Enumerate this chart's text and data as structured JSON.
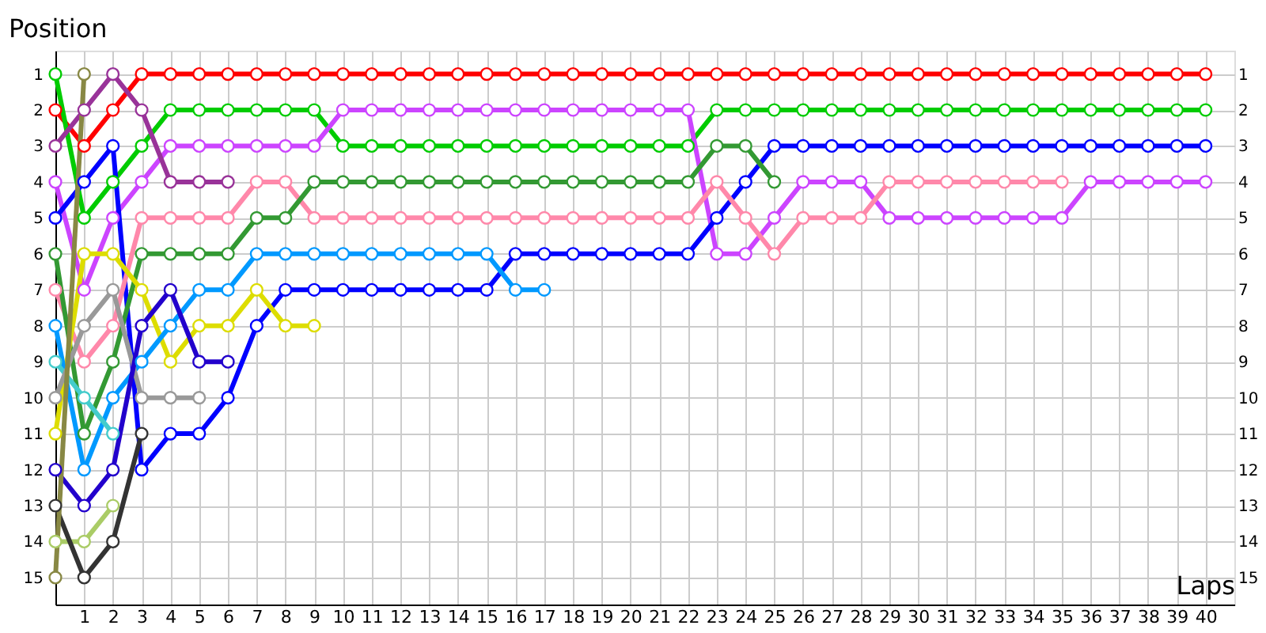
{
  "chart_data": {
    "type": "line",
    "xlabel": "Laps",
    "ylabel": "Position",
    "x": [
      0,
      1,
      2,
      3,
      4,
      5,
      6,
      7,
      8,
      9,
      10,
      11,
      12,
      13,
      14,
      15,
      16,
      17,
      18,
      19,
      20,
      21,
      22,
      23,
      24,
      25,
      26,
      27,
      28,
      29,
      30,
      31,
      32,
      33,
      34,
      35,
      36,
      37,
      38,
      39,
      40
    ],
    "xlim": [
      0,
      41
    ],
    "xticks": [
      1,
      2,
      3,
      4,
      5,
      6,
      7,
      8,
      9,
      10,
      11,
      12,
      13,
      14,
      15,
      16,
      17,
      18,
      19,
      20,
      21,
      22,
      23,
      24,
      25,
      26,
      27,
      28,
      29,
      30,
      31,
      32,
      33,
      34,
      35,
      36,
      37,
      38,
      39,
      40
    ],
    "ylim": [
      15.75,
      0.35
    ],
    "yticks": [
      1,
      2,
      3,
      4,
      5,
      6,
      7,
      8,
      9,
      10,
      11,
      12,
      13,
      14,
      15
    ],
    "y2lim": [
      15.75,
      0.35
    ],
    "y2ticks": [
      1,
      2,
      3,
      4,
      5,
      6,
      7,
      8,
      9,
      10,
      11,
      12,
      13,
      14,
      15
    ],
    "grid": true,
    "legend": false,
    "marker": "circle",
    "line_style": "solid",
    "series": [
      {
        "color": "#ff0000",
        "values": [
          2,
          3,
          2,
          1,
          1,
          1,
          1,
          1,
          1,
          1,
          1,
          1,
          1,
          1,
          1,
          1,
          1,
          1,
          1,
          1,
          1,
          1,
          1,
          1,
          1,
          1,
          1,
          1,
          1,
          1,
          1,
          1,
          1,
          1,
          1,
          1,
          1,
          1,
          1,
          1,
          1
        ]
      },
      {
        "color": "#00cc00",
        "values": [
          1,
          5,
          4,
          3,
          2,
          2,
          2,
          2,
          2,
          2,
          3,
          3,
          3,
          3,
          3,
          3,
          3,
          3,
          3,
          3,
          3,
          3,
          3,
          2,
          2,
          2,
          2,
          2,
          2,
          2,
          2,
          2,
          2,
          2,
          2,
          2,
          2,
          2,
          2,
          2,
          2
        ]
      },
      {
        "color": "#cc44ff",
        "values": [
          4,
          7,
          5,
          4,
          3,
          3,
          3,
          3,
          3,
          3,
          2,
          2,
          2,
          2,
          2,
          2,
          2,
          2,
          2,
          2,
          2,
          2,
          2,
          6,
          6,
          5,
          4,
          4,
          4,
          5,
          5,
          5,
          5,
          5,
          5,
          5,
          4,
          4,
          4,
          4,
          4
        ]
      },
      {
        "color": "#993399",
        "values": [
          3,
          2,
          1,
          2,
          4,
          4,
          4,
          null,
          null,
          null,
          null,
          null,
          null,
          null,
          null,
          null,
          null,
          null,
          null,
          null,
          null,
          null,
          null,
          null,
          null,
          null,
          null,
          null,
          null,
          null,
          null,
          null,
          null,
          null,
          null,
          null,
          null,
          null,
          null,
          null,
          null
        ]
      },
      {
        "color": "#0000ff",
        "values": [
          5,
          4,
          3,
          12,
          11,
          11,
          10,
          8,
          7,
          7,
          7,
          7,
          7,
          7,
          7,
          7,
          6,
          6,
          6,
          6,
          6,
          6,
          6,
          5,
          4,
          3,
          3,
          3,
          3,
          3,
          3,
          3,
          3,
          3,
          3,
          3,
          3,
          3,
          3,
          3,
          3
        ]
      },
      {
        "color": "#ff88aa",
        "values": [
          7,
          9,
          8,
          5,
          5,
          5,
          5,
          4,
          4,
          5,
          5,
          5,
          5,
          5,
          5,
          5,
          5,
          5,
          5,
          5,
          5,
          5,
          5,
          4,
          5,
          6,
          5,
          5,
          5,
          4,
          4,
          4,
          4,
          4,
          4,
          4,
          null,
          null,
          null,
          null,
          null
        ]
      },
      {
        "color": "#339933",
        "values": [
          6,
          11,
          9,
          6,
          6,
          6,
          6,
          5,
          5,
          4,
          4,
          4,
          4,
          4,
          4,
          4,
          4,
          4,
          4,
          4,
          4,
          4,
          4,
          3,
          3,
          4,
          null,
          null,
          null,
          null,
          null,
          null,
          null,
          null,
          null,
          null,
          null,
          null,
          null,
          null,
          null
        ]
      },
      {
        "color": "#dddd00",
        "values": [
          11,
          6,
          6,
          7,
          9,
          8,
          8,
          7,
          8,
          8,
          null,
          null,
          null,
          null,
          null,
          null,
          null,
          null,
          null,
          null,
          null,
          null,
          null,
          null,
          null,
          null,
          null,
          null,
          null,
          null,
          null,
          null,
          null,
          null,
          null,
          null,
          null,
          null,
          null,
          null,
          null
        ]
      },
      {
        "color": "#0099ff",
        "values": [
          8,
          12,
          10,
          9,
          8,
          7,
          7,
          6,
          6,
          6,
          6,
          6,
          6,
          6,
          6,
          6,
          7,
          7,
          null,
          null,
          null,
          null,
          null,
          null,
          null,
          null,
          null,
          null,
          null,
          null,
          null,
          null,
          null,
          null,
          null,
          null,
          null,
          null,
          null,
          null,
          null
        ]
      },
      {
        "color": "#44cccc",
        "values": [
          9,
          10,
          11,
          null,
          null,
          null,
          null,
          null,
          null,
          null,
          null,
          null,
          null,
          null,
          null,
          null,
          null,
          null,
          null,
          null,
          null,
          null,
          null,
          null,
          null,
          null,
          null,
          null,
          null,
          null,
          null,
          null,
          null,
          null,
          null,
          null,
          null,
          null,
          null,
          null,
          null
        ]
      },
      {
        "color": "#999999",
        "values": [
          10,
          8,
          7,
          10,
          10,
          10,
          null,
          null,
          null,
          null,
          null,
          null,
          null,
          null,
          null,
          null,
          null,
          null,
          null,
          null,
          null,
          null,
          null,
          null,
          null,
          null,
          null,
          null,
          null,
          null,
          null,
          null,
          null,
          null,
          null,
          null,
          null,
          null,
          null,
          null,
          null
        ]
      },
      {
        "color": "#2200cc",
        "values": [
          12,
          13,
          12,
          8,
          7,
          9,
          9,
          null,
          null,
          null,
          null,
          null,
          null,
          null,
          null,
          null,
          null,
          null,
          null,
          null,
          null,
          null,
          null,
          null,
          null,
          null,
          null,
          null,
          null,
          null,
          null,
          null,
          null,
          null,
          null,
          null,
          null,
          null,
          null,
          null,
          null
        ]
      },
      {
        "color": "#aacc66",
        "values": [
          14,
          14,
          13,
          null,
          null,
          null,
          null,
          null,
          null,
          null,
          null,
          null,
          null,
          null,
          null,
          null,
          null,
          null,
          null,
          null,
          null,
          null,
          null,
          null,
          null,
          null,
          null,
          null,
          null,
          null,
          null,
          null,
          null,
          null,
          null,
          null,
          null,
          null,
          null,
          null,
          null
        ]
      },
      {
        "color": "#333333",
        "values": [
          13,
          15,
          14,
          11,
          null,
          null,
          null,
          null,
          null,
          null,
          null,
          null,
          null,
          null,
          null,
          null,
          null,
          null,
          null,
          null,
          null,
          null,
          null,
          null,
          null,
          null,
          null,
          null,
          null,
          null,
          null,
          null,
          null,
          null,
          null,
          null,
          null,
          null,
          null,
          null,
          null
        ]
      },
      {
        "color": "#888844",
        "values": [
          15,
          1,
          null,
          null,
          null,
          null,
          null,
          null,
          null,
          null,
          null,
          null,
          null,
          null,
          null,
          null,
          null,
          null,
          null,
          null,
          null,
          null,
          null,
          null,
          null,
          null,
          null,
          null,
          null,
          null,
          null,
          null,
          null,
          null,
          null,
          null,
          null,
          null,
          null,
          null,
          null
        ]
      }
    ]
  }
}
